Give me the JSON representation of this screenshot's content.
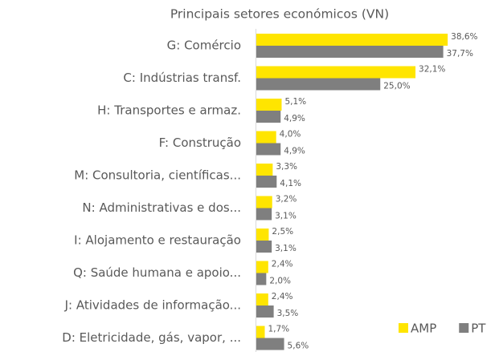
{
  "chart_data": {
    "type": "bar",
    "orientation": "horizontal",
    "title": "Principais setores económicos (VN)",
    "categories": [
      "G: Comércio",
      "C: Indústrias transf.",
      "H: Transportes e armaz.",
      "F: Construção",
      "M: Consultoria, científicas...",
      "N: Administrativas e dos...",
      "I: Alojamento e restauração",
      "Q: Saúde humana e apoio...",
      "J: Atividades de informação...",
      "D: Eletricidade, gás, vapor, ..."
    ],
    "series": [
      {
        "name": "AMP",
        "color": "#FFE500",
        "values": [
          38.6,
          32.1,
          5.1,
          4.0,
          3.3,
          3.2,
          2.5,
          2.4,
          2.4,
          1.7
        ],
        "value_labels": [
          "38,6%",
          "32,1%",
          "5,1%",
          "4,0%",
          "3,3%",
          "3,2%",
          "2,5%",
          "2,4%",
          "2,4%",
          "1,7%"
        ]
      },
      {
        "name": "PT",
        "color": "#7F7F7F",
        "values": [
          37.7,
          25.0,
          4.9,
          4.9,
          4.1,
          3.1,
          3.1,
          2.0,
          3.5,
          5.6
        ],
        "value_labels": [
          "37,7%",
          "25,0%",
          "4,9%",
          "4,9%",
          "4,1%",
          "3,1%",
          "3,1%",
          "2,0%",
          "3,5%",
          "5,6%"
        ]
      }
    ],
    "legend": "bottom-right"
  }
}
